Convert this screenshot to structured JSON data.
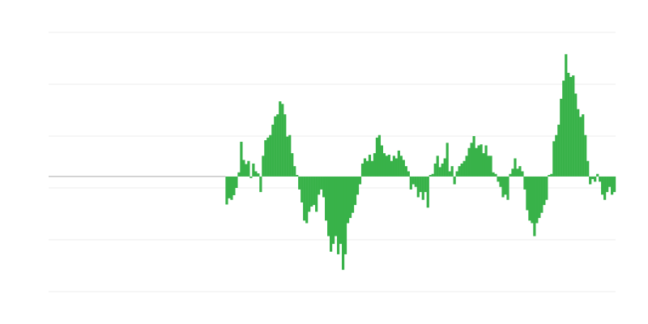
{
  "chart_data": {
    "type": "bar",
    "title": "",
    "xlabel": "",
    "ylabel": "",
    "ylim": [
      -22.2,
      27.8
    ],
    "gridlines": [
      27.8,
      17.8,
      7.8,
      -2.2,
      -12.2,
      -22.2
    ],
    "grid": true,
    "x_domain": [
      -73,
      160
    ],
    "bar_color": "#38b249",
    "grid_color": "#eeeeee",
    "zero_line_color": "#aaaaaa",
    "values": [
      -5.4,
      -4.2,
      -4.5,
      -3.6,
      -2.2,
      0.8,
      6.7,
      3.2,
      2.4,
      3.0,
      -0.3,
      2.5,
      1.0,
      0.6,
      -3.0,
      4.0,
      7.0,
      7.5,
      8.0,
      10.0,
      11.6,
      12.0,
      14.5,
      14.0,
      12.0,
      7.7,
      8.0,
      4.5,
      2.0,
      0.3,
      -2.5,
      -5.0,
      -8.5,
      -9.0,
      -6.8,
      -5.8,
      -5.5,
      -6.8,
      -3.5,
      -2.5,
      -4.0,
      -8.5,
      -11.5,
      -14.5,
      -13.0,
      -11.5,
      -15.0,
      -13.0,
      -18.0,
      -15.0,
      -9.0,
      -8.0,
      -7.0,
      -5.5,
      -3.5,
      -1.5,
      2.5,
      3.5,
      3.0,
      4.2,
      3.0,
      4.5,
      7.5,
      8.0,
      6.0,
      4.5,
      4.0,
      4.2,
      3.0,
      4.0,
      3.5,
      5.0,
      4.0,
      3.2,
      2.0,
      1.0,
      -2.5,
      -1.5,
      -2.0,
      -4.0,
      -3.0,
      -4.5,
      -3.0,
      -6.0,
      0.3,
      0.5,
      2.5,
      4.0,
      1.8,
      2.5,
      3.5,
      6.5,
      1.0,
      2.0,
      -1.5,
      1.0,
      2.0,
      2.5,
      3.0,
      4.0,
      5.5,
      6.5,
      7.8,
      5.5,
      6.0,
      6.2,
      4.5,
      6.0,
      4.0,
      4.0,
      0.8,
      0.5,
      -1.0,
      -2.0,
      -4.0,
      -3.5,
      -4.5,
      0.5,
      1.5,
      3.5,
      1.5,
      2.0,
      1.0,
      -2.5,
      -6.5,
      -8.5,
      -9.0,
      -11.5,
      -9.0,
      -8.0,
      -7.0,
      -5.5,
      -4.5,
      0.3,
      0.5,
      6.8,
      8.0,
      10.0,
      15.0,
      18.5,
      23.6,
      20.0,
      19.2,
      19.5,
      16.0,
      13.0,
      11.5,
      12.0,
      8.0,
      3.0,
      -1.5,
      -0.5,
      -1.0,
      0.5,
      -1.0,
      -3.5,
      -4.5,
      -3.0,
      -2.0,
      -3.5,
      -3.0
    ]
  }
}
